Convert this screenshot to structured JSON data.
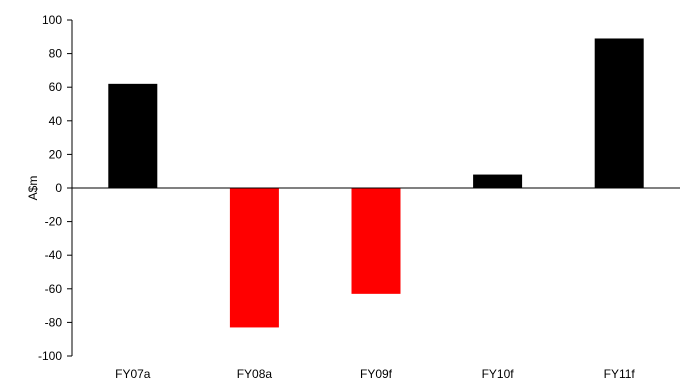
{
  "chart_data": {
    "type": "bar",
    "title": "",
    "xlabel": "",
    "ylabel": "A$m",
    "ylim": [
      -100,
      100
    ],
    "yticks": [
      100,
      80,
      60,
      40,
      20,
      0,
      -20,
      -40,
      -60,
      -80,
      -100
    ],
    "grid": false,
    "legend": "none",
    "categories": [
      "FY07a",
      "FY08a",
      "FY09f",
      "FY10f",
      "FY11f"
    ],
    "values": [
      62,
      -83,
      -63,
      8,
      89
    ],
    "colors": {
      "positive": "#000000",
      "negative": "#ff0000",
      "axis": "#000000"
    }
  }
}
